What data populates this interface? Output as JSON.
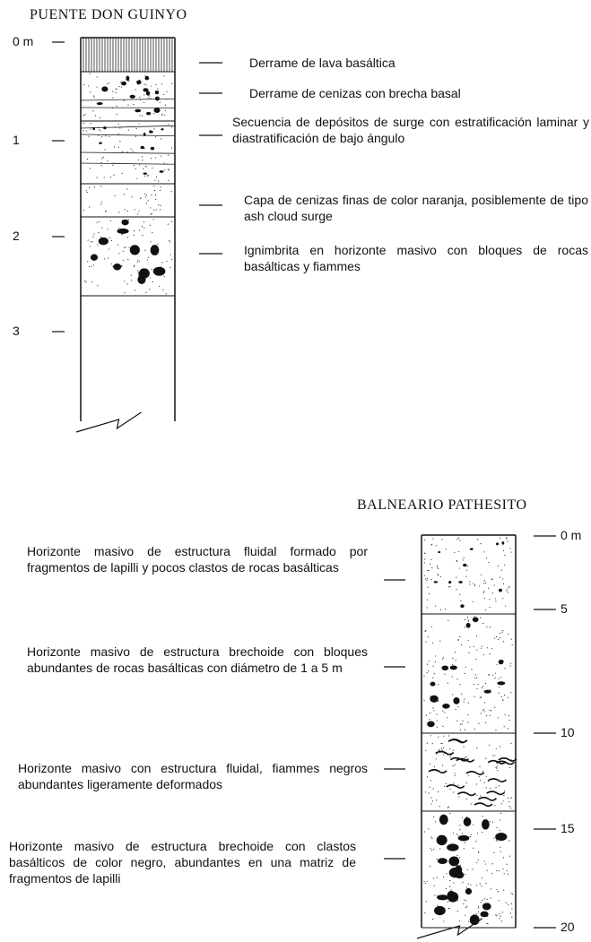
{
  "columns": [
    {
      "title": "PUENTE DON GUINYO",
      "scale": [
        "0 m",
        "1",
        "2",
        "3"
      ],
      "layers": [
        "Derrame de lava basáltica",
        "Derrame de cenizas con brecha basal",
        "Secuencia de depósitos de surge con estratificación laminar y diastratificación de bajo ángulo",
        "Capa de cenizas finas de color naranja, posiblemente de tipo ash cloud surge",
        "Ignimbrita en horizonte masivo con bloques de rocas basálticas y fiammes"
      ]
    },
    {
      "title": "BALNEARIO PATHESITO",
      "scale": [
        "0 m",
        "5",
        "10",
        "15",
        "20"
      ],
      "layers": [
        "Horizonte masivo de estructura fluidal formado por fragmentos de lapilli y pocos clastos de rocas basálticas",
        "Horizonte masivo de estructura brechoide con bloques abundantes de rocas basálticas con diámetro de 1 a 5 m",
        "Horizonte masivo con estructura fluidal, fiammes negros abundantes ligeramente deformados",
        "Horizonte masivo de estructura brechoide con clastos basálticos de color negro, abundantes en una matriz de fragmentos de lapilli"
      ]
    }
  ]
}
